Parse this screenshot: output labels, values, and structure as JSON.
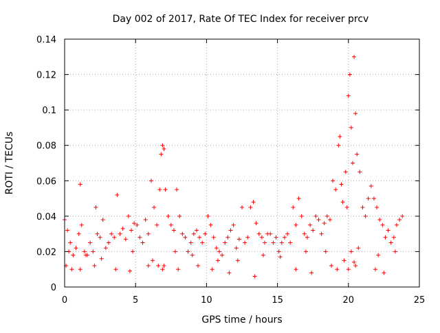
{
  "chart_data": {
    "type": "scatter",
    "title": "Day 002 of 2017, Rate Of TEC Index for receiver prcv",
    "xlabel": "GPS time / hours",
    "ylabel": "ROTI / TECUs",
    "xlim": [
      0,
      25
    ],
    "ylim": [
      0,
      0.14
    ],
    "xticks": [
      0,
      5,
      10,
      15,
      20,
      25
    ],
    "yticks": [
      0,
      0.02,
      0.04,
      0.06,
      0.08,
      0.1,
      0.12,
      0.14
    ],
    "xtick_labels": [
      "0",
      "5",
      "10",
      "15",
      "20",
      "25"
    ],
    "ytick_labels": [
      "0",
      "0.02",
      "0.04",
      "0.06",
      "0.08",
      "0.1",
      "0.12",
      "0.14"
    ],
    "grid": true,
    "marker": "plus",
    "series_color": "#ff0000",
    "series": [
      {
        "name": "ROTI",
        "x": [
          0.0,
          0.2,
          0.4,
          0.6,
          0.8,
          1.0,
          1.1,
          1.2,
          1.4,
          1.6,
          1.8,
          2.0,
          2.2,
          2.3,
          2.5,
          2.7,
          2.9,
          3.1,
          3.3,
          3.5,
          3.7,
          3.9,
          4.1,
          4.3,
          4.5,
          4.7,
          4.9,
          5.1,
          5.3,
          5.5,
          5.7,
          5.9,
          6.1,
          6.3,
          6.5,
          6.7,
          6.8,
          6.9,
          7.0,
          7.1,
          7.3,
          7.5,
          7.7,
          7.9,
          8.1,
          8.3,
          8.5,
          8.7,
          8.9,
          9.1,
          9.3,
          9.5,
          9.7,
          9.9,
          10.1,
          10.3,
          10.5,
          10.7,
          10.9,
          11.1,
          11.3,
          11.5,
          11.7,
          11.9,
          12.1,
          12.3,
          12.5,
          12.7,
          12.9,
          13.1,
          13.3,
          13.5,
          13.7,
          13.9,
          14.1,
          14.3,
          14.5,
          14.7,
          14.9,
          15.1,
          15.3,
          15.5,
          15.7,
          15.9,
          16.1,
          16.3,
          16.5,
          16.7,
          16.9,
          17.1,
          17.3,
          17.5,
          17.7,
          17.9,
          18.1,
          18.3,
          18.5,
          18.7,
          18.9,
          19.1,
          19.3,
          19.4,
          19.5,
          19.6,
          19.8,
          19.9,
          20.0,
          20.1,
          20.2,
          20.3,
          20.4,
          20.5,
          20.6,
          20.8,
          21.0,
          21.2,
          21.4,
          21.6,
          21.8,
          22.0,
          22.2,
          22.4,
          22.6,
          22.8,
          23.0,
          23.2,
          23.4,
          23.6,
          23.8,
          0.1,
          0.5,
          1.1,
          2.1,
          3.6,
          4.6,
          5.9,
          6.2,
          6.6,
          6.9,
          7.0,
          8.0,
          9.4,
          10.4,
          11.6,
          13.4,
          16.3,
          17.4,
          18.8,
          19.2,
          19.7,
          20.0,
          20.2,
          20.4,
          20.5,
          21.9,
          22.5,
          0.3,
          1.5,
          2.6,
          4.8,
          7.8,
          9.0,
          10.8,
          12.2,
          14.0,
          15.2,
          17.0,
          18.4,
          20.7,
          22.1,
          23.3
        ],
        "y": [
          0.038,
          0.032,
          0.025,
          0.018,
          0.022,
          0.03,
          0.058,
          0.035,
          0.02,
          0.018,
          0.025,
          0.02,
          0.045,
          0.03,
          0.028,
          0.038,
          0.022,
          0.025,
          0.03,
          0.028,
          0.052,
          0.03,
          0.033,
          0.027,
          0.04,
          0.032,
          0.036,
          0.035,
          0.028,
          0.025,
          0.038,
          0.03,
          0.06,
          0.045,
          0.035,
          0.055,
          0.075,
          0.08,
          0.078,
          0.055,
          0.04,
          0.035,
          0.032,
          0.055,
          0.04,
          0.03,
          0.028,
          0.02,
          0.025,
          0.03,
          0.032,
          0.028,
          0.025,
          0.03,
          0.04,
          0.035,
          0.028,
          0.022,
          0.02,
          0.018,
          0.025,
          0.028,
          0.032,
          0.035,
          0.022,
          0.027,
          0.045,
          0.025,
          0.028,
          0.045,
          0.048,
          0.036,
          0.03,
          0.028,
          0.025,
          0.03,
          0.03,
          0.025,
          0.028,
          0.02,
          0.025,
          0.028,
          0.03,
          0.025,
          0.045,
          0.035,
          0.05,
          0.04,
          0.03,
          0.028,
          0.035,
          0.032,
          0.04,
          0.038,
          0.03,
          0.036,
          0.04,
          0.038,
          0.06,
          0.055,
          0.08,
          0.085,
          0.058,
          0.048,
          0.065,
          0.045,
          0.108,
          0.12,
          0.09,
          0.07,
          0.13,
          0.098,
          0.075,
          0.065,
          0.045,
          0.04,
          0.05,
          0.057,
          0.05,
          0.045,
          0.038,
          0.035,
          0.028,
          0.032,
          0.025,
          0.028,
          0.035,
          0.038,
          0.04,
          0.012,
          0.01,
          0.01,
          0.012,
          0.01,
          0.009,
          0.012,
          0.015,
          0.012,
          0.01,
          0.012,
          0.01,
          0.012,
          0.01,
          0.008,
          0.006,
          0.01,
          0.008,
          0.012,
          0.01,
          0.015,
          0.01,
          0.02,
          0.014,
          0.012,
          0.01,
          0.008,
          0.02,
          0.018,
          0.016,
          0.02,
          0.02,
          0.018,
          0.015,
          0.015,
          0.018,
          0.017,
          0.02,
          0.02,
          0.022,
          0.018,
          0.02
        ]
      }
    ]
  }
}
